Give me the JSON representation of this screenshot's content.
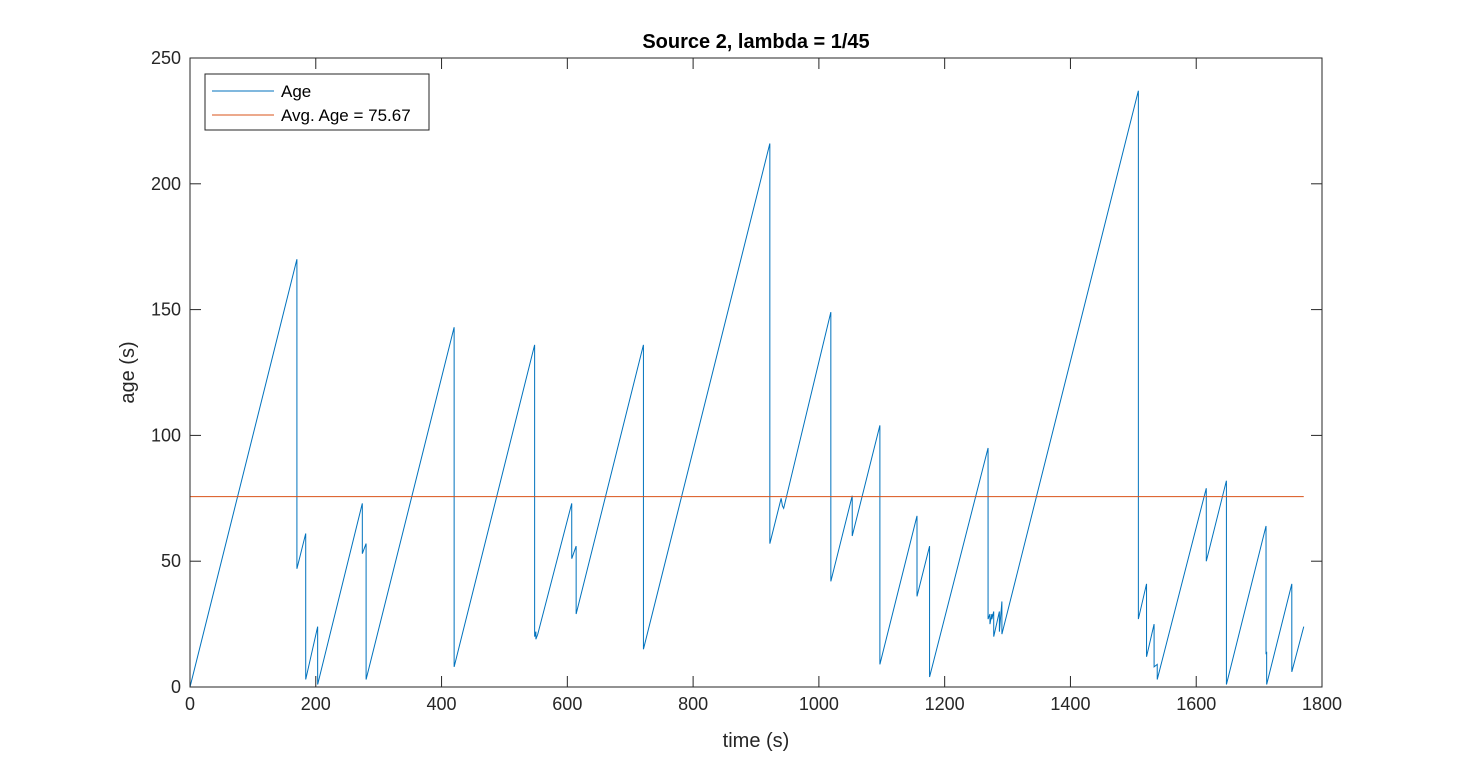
{
  "chart_data": {
    "type": "line",
    "title": "Source 2, lambda = 1/45",
    "xlabel": "time (s)",
    "ylabel": "age (s)",
    "xlim": [
      0,
      1800
    ],
    "ylim": [
      0,
      250
    ],
    "xticks": [
      0,
      200,
      400,
      600,
      800,
      1000,
      1200,
      1400,
      1600,
      1800
    ],
    "yticks": [
      0,
      50,
      100,
      150,
      200,
      250
    ],
    "grid": false,
    "legend_position": "top-left",
    "series": [
      {
        "name": "Age",
        "color": "#0072BD",
        "points": [
          [
            0,
            0
          ],
          [
            170,
            170
          ],
          [
            170,
            47
          ],
          [
            184,
            61
          ],
          [
            184,
            3
          ],
          [
            203,
            24
          ],
          [
            203,
            1
          ],
          [
            274,
            73
          ],
          [
            274,
            53
          ],
          [
            280,
            57
          ],
          [
            280,
            3
          ],
          [
            420,
            143
          ],
          [
            420,
            8
          ],
          [
            548,
            136
          ],
          [
            548,
            20
          ],
          [
            550,
            22
          ],
          [
            550,
            19
          ],
          [
            553,
            21
          ],
          [
            607,
            73
          ],
          [
            607,
            51
          ],
          [
            614,
            56
          ],
          [
            614,
            29
          ],
          [
            721,
            136
          ],
          [
            721,
            15
          ],
          [
            922,
            216
          ],
          [
            922,
            57
          ],
          [
            940,
            75
          ],
          [
            942,
            72
          ],
          [
            944,
            71
          ],
          [
            1019,
            149
          ],
          [
            1019,
            42
          ],
          [
            1053,
            76
          ],
          [
            1053,
            60
          ],
          [
            1097,
            104
          ],
          [
            1097,
            9
          ],
          [
            1156,
            68
          ],
          [
            1156,
            36
          ],
          [
            1176,
            56
          ],
          [
            1176,
            4
          ],
          [
            1269,
            95
          ],
          [
            1269,
            27
          ],
          [
            1272,
            29
          ],
          [
            1272,
            25
          ],
          [
            1275,
            29
          ],
          [
            1275,
            27
          ],
          [
            1278,
            30
          ],
          [
            1278,
            20
          ],
          [
            1287,
            30
          ],
          [
            1287,
            22
          ],
          [
            1291,
            34
          ],
          [
            1291,
            21
          ],
          [
            1508,
            237
          ],
          [
            1508,
            27
          ],
          [
            1521,
            41
          ],
          [
            1521,
            12
          ],
          [
            1533,
            25
          ],
          [
            1533,
            8
          ],
          [
            1538,
            9
          ],
          [
            1538,
            3
          ],
          [
            1616,
            79
          ],
          [
            1616,
            50
          ],
          [
            1648,
            82
          ],
          [
            1648,
            1
          ],
          [
            1711,
            64
          ],
          [
            1711,
            13
          ],
          [
            1712,
            14
          ],
          [
            1712,
            1
          ],
          [
            1752,
            41
          ],
          [
            1752,
            6
          ],
          [
            1771,
            24
          ]
        ]
      },
      {
        "name": "Avg. Age = 75.67",
        "color": "#D95319",
        "points": [
          [
            0,
            75.67
          ],
          [
            1771,
            75.67
          ]
        ]
      }
    ]
  }
}
